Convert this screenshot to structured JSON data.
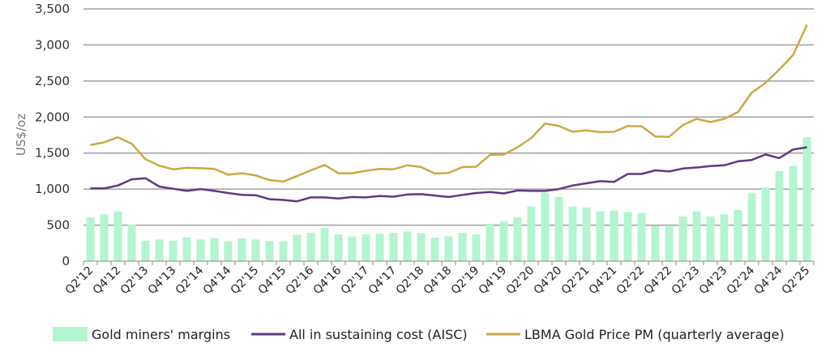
{
  "chart_data": {
    "type": "bar+line",
    "ylabel": "US$/oz",
    "ylim": [
      0,
      3500
    ],
    "yticks": [
      "0",
      "500",
      "1,000",
      "1,500",
      "2,000",
      "2,500",
      "3,000",
      "3,500"
    ],
    "ytick_values": [
      0,
      500,
      1000,
      1500,
      2000,
      2500,
      3000,
      3500
    ],
    "grid": true,
    "legend_placement": "bottom",
    "categories": [
      "Q2'12",
      "Q3'12",
      "Q4'12",
      "Q1'13",
      "Q2'13",
      "Q3'13",
      "Q4'13",
      "Q1'14",
      "Q2'14",
      "Q3'14",
      "Q4'14",
      "Q1'15",
      "Q2'15",
      "Q3'15",
      "Q4'15",
      "Q1'16",
      "Q2'16",
      "Q3'16",
      "Q4'16",
      "Q1'17",
      "Q2'17",
      "Q3'17",
      "Q4'17",
      "Q1'18",
      "Q2'18",
      "Q3'18",
      "Q4'18",
      "Q1'19",
      "Q2'19",
      "Q3'19",
      "Q4'19",
      "Q1'20",
      "Q2'20",
      "Q3'20",
      "Q4'20",
      "Q1'21",
      "Q2'21",
      "Q3'21",
      "Q4'21",
      "Q1'22",
      "Q2'22",
      "Q3'22",
      "Q4'22",
      "Q1'23",
      "Q2'23",
      "Q3'23",
      "Q4'23",
      "Q1'24",
      "Q2'24",
      "Q3'24",
      "Q4'24",
      "Q1'25",
      "Q2'25"
    ],
    "xtick_labels": [
      "Q2'12",
      "Q4'12",
      "Q2'13",
      "Q4'13",
      "Q2'14",
      "Q4'14",
      "Q2'15",
      "Q4'15",
      "Q2'16",
      "Q4'16",
      "Q2'17",
      "Q4'17",
      "Q2'18",
      "Q4'18",
      "Q2'19",
      "Q4'19",
      "Q2'20",
      "Q4'20",
      "Q2'21",
      "Q4'21",
      "Q2'22",
      "Q4'22",
      "Q2'23",
      "Q4'23",
      "Q2'24",
      "Q4'24",
      "Q2'25"
    ],
    "series": [
      {
        "name": "Gold miners' margins",
        "type": "bar",
        "color": "#b3f5d0",
        "values": [
          610,
          650,
          690,
          510,
          285,
          300,
          285,
          330,
          300,
          320,
          275,
          315,
          300,
          280,
          275,
          365,
          395,
          460,
          370,
          345,
          375,
          380,
          395,
          410,
          390,
          325,
          345,
          395,
          370,
          520,
          550,
          610,
          760,
          950,
          890,
          760,
          745,
          690,
          700,
          680,
          670,
          490,
          495,
          620,
          690,
          620,
          650,
          710,
          940,
          1020,
          1250,
          1320,
          1720
        ]
      },
      {
        "name": "All in sustaining cost (AISC)",
        "type": "line",
        "color": "#5e3a80",
        "values": [
          1010,
          1010,
          1050,
          1135,
          1150,
          1035,
          1005,
          975,
          1000,
          975,
          945,
          920,
          915,
          860,
          850,
          830,
          885,
          885,
          870,
          890,
          885,
          905,
          895,
          925,
          930,
          910,
          890,
          920,
          945,
          960,
          940,
          980,
          975,
          975,
          1000,
          1050,
          1080,
          1110,
          1100,
          1210,
          1210,
          1260,
          1245,
          1285,
          1300,
          1320,
          1330,
          1385,
          1405,
          1480,
          1430,
          1550,
          1580
        ]
      },
      {
        "name": "LBMA Gold Price PM (quarterly average)",
        "type": "line",
        "color": "#c9aa45",
        "values": [
          1610,
          1650,
          1720,
          1630,
          1415,
          1325,
          1275,
          1295,
          1290,
          1280,
          1200,
          1220,
          1190,
          1125,
          1105,
          1180,
          1260,
          1335,
          1220,
          1220,
          1255,
          1280,
          1275,
          1330,
          1305,
          1215,
          1225,
          1305,
          1310,
          1475,
          1480,
          1580,
          1710,
          1910,
          1875,
          1795,
          1815,
          1790,
          1795,
          1875,
          1870,
          1730,
          1725,
          1890,
          1975,
          1930,
          1975,
          2070,
          2340,
          2475,
          2660,
          2860,
          3280
        ]
      }
    ]
  }
}
